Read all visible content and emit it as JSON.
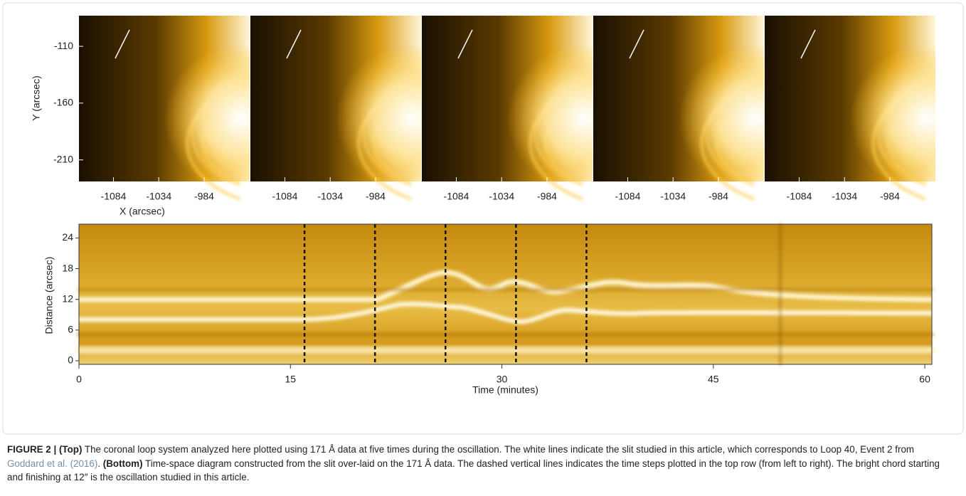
{
  "top": {
    "ylabel": "Y (arcsec)",
    "xlabel": "X (arcsec)",
    "xlim": [
      -1122,
      -933
    ],
    "ylim": [
      -229,
      -83
    ],
    "xticks": [
      -1084,
      -1034,
      -984
    ],
    "yticks": [
      -110,
      -160,
      -210
    ]
  },
  "bottom": {
    "ylabel": "Distance (arcsec)",
    "xlabel": "Time (minutes)",
    "xlim": [
      0,
      60.5
    ],
    "ylim": [
      -0.7,
      26.7
    ],
    "xticks": [
      0,
      15,
      30,
      45,
      60
    ],
    "yticks": [
      0,
      6,
      12,
      18,
      24
    ],
    "dashed_times": [
      16,
      21,
      26,
      31,
      36
    ]
  },
  "caption": {
    "label": "FIGURE 2 |",
    "top_heading": "(Top)",
    "top_text": "The coronal loop system analyzed here plotted using 171 Å data at five times during the oscillation. The white lines indicate the slit studied in this article, which corresponds to Loop 40, Event 2 from",
    "reference": "Goddard et al. (2016)",
    "after_reference": ".",
    "bottom_heading": "(Bottom)",
    "bottom_text": "Time-space diagram constructed from the slit over-laid on the 171 Å data. The dashed vertical lines indicates the time steps plotted in the top row (from left to right). The bright chord starting and finishing at 12″ is the oscillation studied in this article."
  }
}
